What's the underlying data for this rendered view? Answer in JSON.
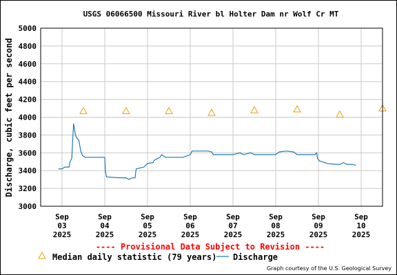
{
  "chart_data": {
    "type": "line",
    "title": "USGS 06066500 Missouri River bl Holter Dam nr Wolf Cr MT",
    "ylabel": "Discharge, cubic feet per second",
    "xlabel": "",
    "ylim": [
      3000,
      5000
    ],
    "y_ticks": [
      "5000",
      "4800",
      "4600",
      "4400",
      "4200",
      "4000",
      "3800",
      "3600",
      "3400",
      "3200",
      "3000"
    ],
    "x_ticks": [
      {
        "month": "Sep",
        "day": "03",
        "year": "2025"
      },
      {
        "month": "Sep",
        "day": "04",
        "year": "2025"
      },
      {
        "month": "Sep",
        "day": "05",
        "year": "2025"
      },
      {
        "month": "Sep",
        "day": "06",
        "year": "2025"
      },
      {
        "month": "Sep",
        "day": "07",
        "year": "2025"
      },
      {
        "month": "Sep",
        "day": "08",
        "year": "2025"
      },
      {
        "month": "Sep",
        "day": "09",
        "year": "2025"
      },
      {
        "month": "Sep",
        "day": "10",
        "year": "2025"
      }
    ],
    "grid": true,
    "series": [
      {
        "name": "Median daily statistic (79 years)",
        "kind": "marker-triangle",
        "color": "#e8a000",
        "points": [
          {
            "x": "2025-09-03 12:00",
            "y": 4070
          },
          {
            "x": "2025-09-04 12:00",
            "y": 4070
          },
          {
            "x": "2025-09-05 12:00",
            "y": 4070
          },
          {
            "x": "2025-09-06 12:00",
            "y": 4050
          },
          {
            "x": "2025-09-07 12:00",
            "y": 4080
          },
          {
            "x": "2025-09-08 12:00",
            "y": 4090
          },
          {
            "x": "2025-09-09 12:00",
            "y": 4030
          },
          {
            "x": "2025-09-10 12:00",
            "y": 4100
          }
        ]
      },
      {
        "name": "Discharge",
        "kind": "line",
        "color": "#1f78b4",
        "points": [
          {
            "x": "2025-09-02 22:00",
            "y": 3420
          },
          {
            "x": "2025-09-03 00:00",
            "y": 3420
          },
          {
            "x": "2025-09-03 01:30",
            "y": 3440
          },
          {
            "x": "2025-09-03 04:00",
            "y": 3440
          },
          {
            "x": "2025-09-03 04:30",
            "y": 3500
          },
          {
            "x": "2025-09-03 05:30",
            "y": 3540
          },
          {
            "x": "2025-09-03 06:00",
            "y": 3750
          },
          {
            "x": "2025-09-03 06:30",
            "y": 3930
          },
          {
            "x": "2025-09-03 07:30",
            "y": 3800
          },
          {
            "x": "2025-09-03 08:30",
            "y": 3760
          },
          {
            "x": "2025-09-03 09:30",
            "y": 3740
          },
          {
            "x": "2025-09-03 10:30",
            "y": 3620
          },
          {
            "x": "2025-09-03 11:30",
            "y": 3570
          },
          {
            "x": "2025-09-03 13:00",
            "y": 3550
          },
          {
            "x": "2025-09-03 20:00",
            "y": 3550
          },
          {
            "x": "2025-09-04 00:00",
            "y": 3550
          },
          {
            "x": "2025-09-04 00:20",
            "y": 3400
          },
          {
            "x": "2025-09-04 01:00",
            "y": 3330
          },
          {
            "x": "2025-09-04 08:00",
            "y": 3320
          },
          {
            "x": "2025-09-04 12:00",
            "y": 3320
          },
          {
            "x": "2025-09-04 13:30",
            "y": 3300
          },
          {
            "x": "2025-09-04 15:30",
            "y": 3320
          },
          {
            "x": "2025-09-04 17:00",
            "y": 3320
          },
          {
            "x": "2025-09-04 17:40",
            "y": 3420
          },
          {
            "x": "2025-09-04 22:00",
            "y": 3440
          },
          {
            "x": "2025-09-05 00:00",
            "y": 3480
          },
          {
            "x": "2025-09-05 03:00",
            "y": 3490
          },
          {
            "x": "2025-09-05 04:00",
            "y": 3520
          },
          {
            "x": "2025-09-05 07:00",
            "y": 3550
          },
          {
            "x": "2025-09-05 08:00",
            "y": 3580
          },
          {
            "x": "2025-09-05 10:00",
            "y": 3550
          },
          {
            "x": "2025-09-05 20:00",
            "y": 3550
          },
          {
            "x": "2025-09-06 00:00",
            "y": 3580
          },
          {
            "x": "2025-09-06 01:00",
            "y": 3620
          },
          {
            "x": "2025-09-06 10:00",
            "y": 3620
          },
          {
            "x": "2025-09-06 12:00",
            "y": 3610
          },
          {
            "x": "2025-09-06 13:00",
            "y": 3580
          },
          {
            "x": "2025-09-07 00:00",
            "y": 3580
          },
          {
            "x": "2025-09-07 04:00",
            "y": 3600
          },
          {
            "x": "2025-09-07 06:00",
            "y": 3580
          },
          {
            "x": "2025-09-07 10:00",
            "y": 3600
          },
          {
            "x": "2025-09-07 12:00",
            "y": 3580
          },
          {
            "x": "2025-09-08 00:00",
            "y": 3580
          },
          {
            "x": "2025-09-08 02:00",
            "y": 3610
          },
          {
            "x": "2025-09-08 06:00",
            "y": 3620
          },
          {
            "x": "2025-09-08 10:00",
            "y": 3610
          },
          {
            "x": "2025-09-08 12:00",
            "y": 3580
          },
          {
            "x": "2025-09-08 22:00",
            "y": 3580
          },
          {
            "x": "2025-09-08 23:00",
            "y": 3600
          },
          {
            "x": "2025-09-08 23:30",
            "y": 3540
          },
          {
            "x": "2025-09-09 00:30",
            "y": 3510
          },
          {
            "x": "2025-09-09 02:00",
            "y": 3500
          },
          {
            "x": "2025-09-09 05:00",
            "y": 3480
          },
          {
            "x": "2025-09-09 10:00",
            "y": 3470
          },
          {
            "x": "2025-09-09 12:00",
            "y": 3470
          },
          {
            "x": "2025-09-09 14:00",
            "y": 3490
          },
          {
            "x": "2025-09-09 16:00",
            "y": 3470
          },
          {
            "x": "2025-09-09 19:00",
            "y": 3470
          },
          {
            "x": "2025-09-09 21:00",
            "y": 3460
          }
        ]
      }
    ],
    "provisional_note": "---- Provisional Data Subject to Revision ----",
    "legend": {
      "median_label": "Median daily statistic (79 years)",
      "discharge_label": "Discharge"
    },
    "credit": "Graph courtesy of the U.S. Geological Survey",
    "colors": {
      "median": "#e8a000",
      "discharge": "#1f78b4",
      "grid": "#c8c8c8",
      "provisional": "#ff0000"
    }
  }
}
